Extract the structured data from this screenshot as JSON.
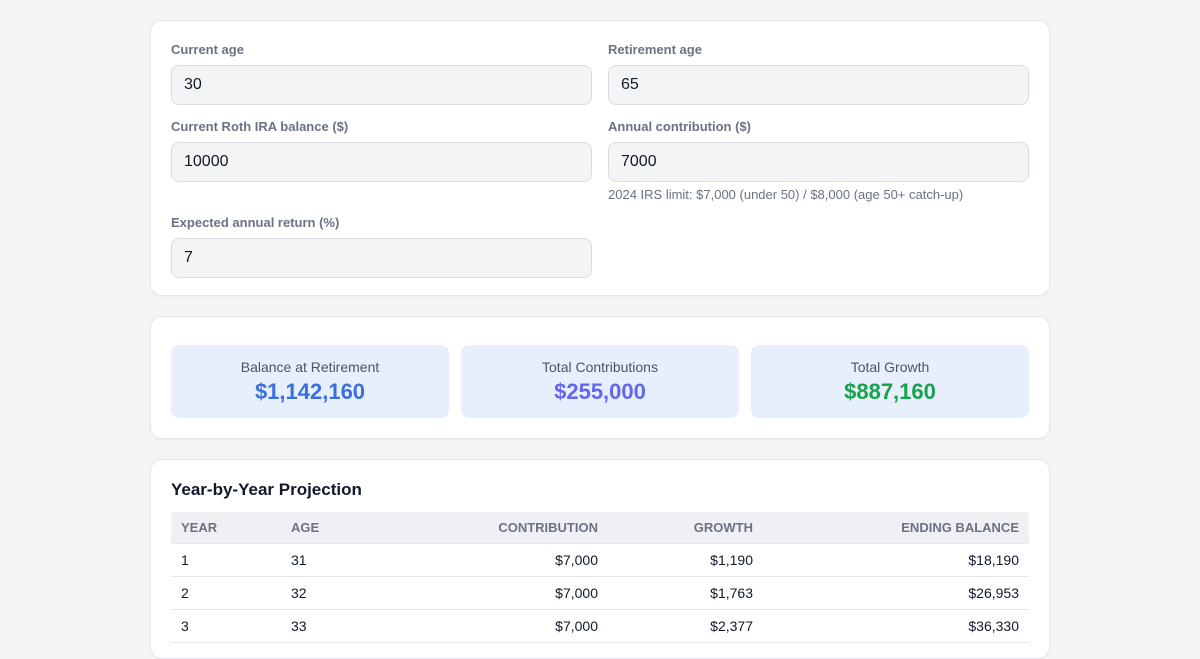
{
  "form": {
    "current_age": {
      "label": "Current age",
      "value": "30"
    },
    "retirement_age": {
      "label": "Retirement age",
      "value": "65"
    },
    "balance": {
      "label": "Current Roth IRA balance ($)",
      "value": "10000"
    },
    "contribution": {
      "label": "Annual contribution ($)",
      "value": "7000",
      "hint": "2024 IRS limit: $7,000 (under 50) / $8,000 (age 50+ catch-up)"
    },
    "return_rate": {
      "label": "Expected annual return (%)",
      "value": "7"
    }
  },
  "summary": {
    "balance": {
      "label": "Balance at Retirement",
      "value": "$1,142,160",
      "color": "#3b6fe0"
    },
    "contributions": {
      "label": "Total Contributions",
      "value": "$255,000",
      "color": "#6366f1"
    },
    "growth": {
      "label": "Total Growth",
      "value": "$887,160",
      "color": "#16a34a"
    }
  },
  "projection": {
    "title": "Year-by-Year Projection",
    "headers": [
      "Year",
      "Age",
      "Contribution",
      "Growth",
      "Ending Balance"
    ],
    "rows": [
      [
        "1",
        "31",
        "$7,000",
        "$1,190",
        "$18,190"
      ],
      [
        "2",
        "32",
        "$7,000",
        "$1,763",
        "$26,953"
      ],
      [
        "3",
        "33",
        "$7,000",
        "$2,377",
        "$36,330"
      ]
    ]
  }
}
